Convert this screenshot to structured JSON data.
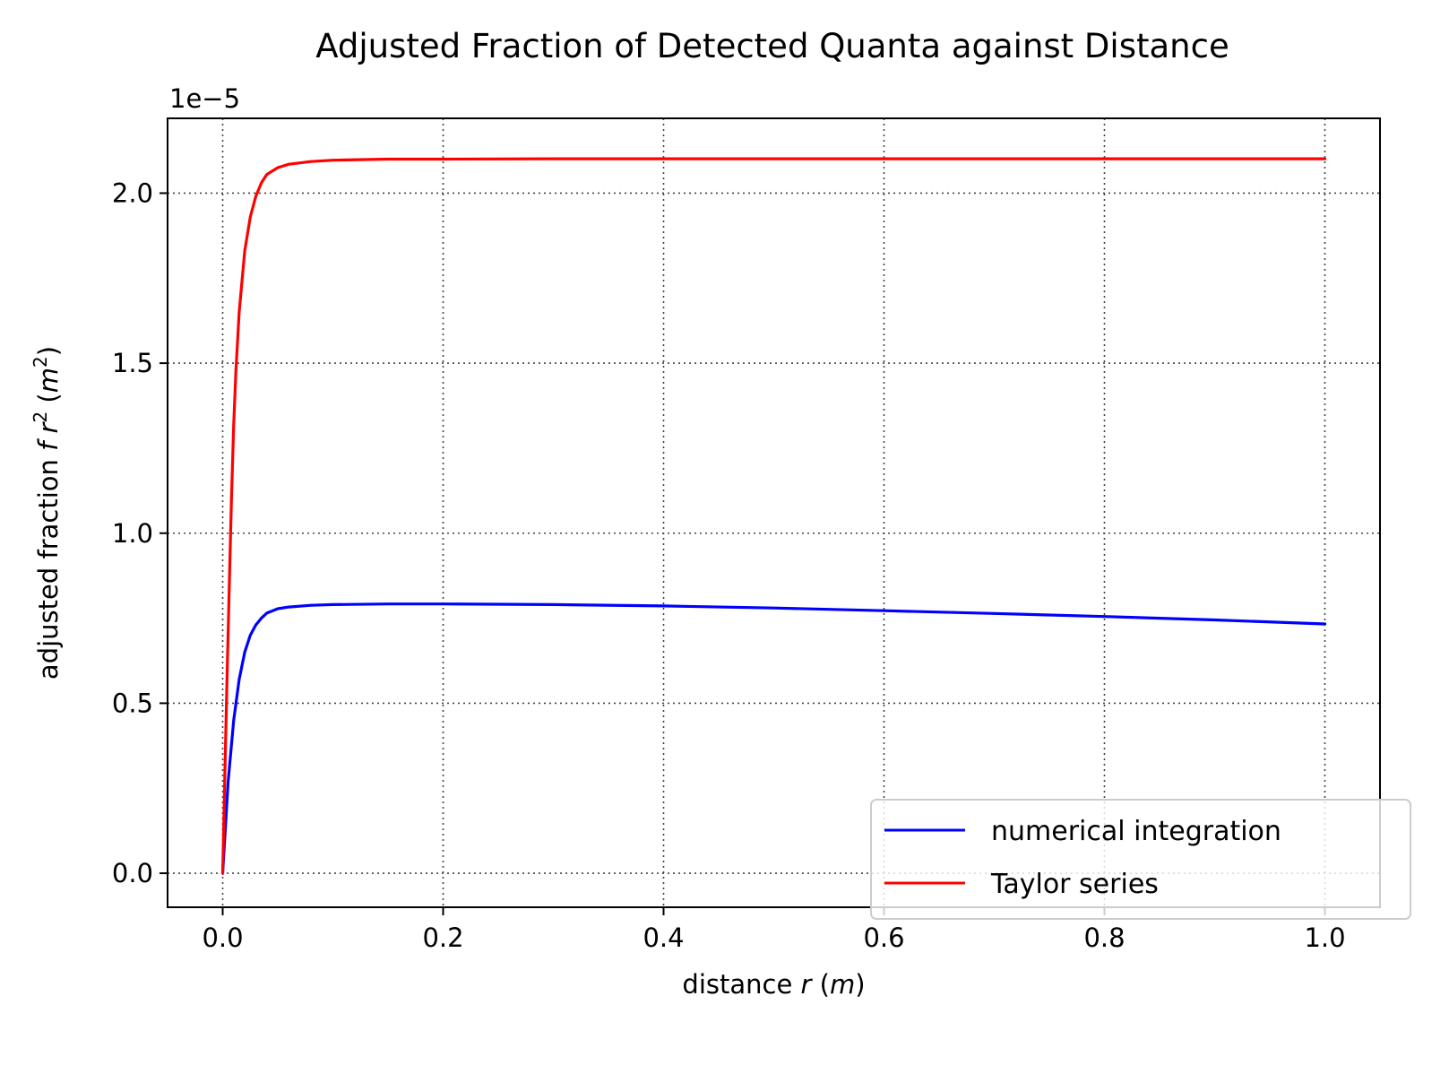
{
  "chart_data": {
    "type": "line",
    "title": "Adjusted Fraction of Detected Quanta against Distance",
    "xlabel": {
      "prefix": "distance ",
      "var": "r",
      "unit_open": " (",
      "unit_var": "m",
      "unit_close": ")"
    },
    "ylabel": {
      "prefix": "adjusted fraction ",
      "var": "f r",
      "sup": "2",
      "unit_open": " (",
      "unit_var": "m",
      "unit_sup": "2",
      "unit_close": ")"
    },
    "offset_text": "1e−5",
    "xlim": [
      -0.05,
      1.05
    ],
    "ylim": [
      -0.1,
      2.22
    ],
    "x_ticks": [
      0.0,
      0.2,
      0.4,
      0.6,
      0.8,
      1.0
    ],
    "x_tick_labels": [
      "0.0",
      "0.2",
      "0.4",
      "0.6",
      "0.8",
      "1.0"
    ],
    "y_ticks": [
      0.0,
      0.5,
      1.0,
      1.5,
      2.0
    ],
    "y_tick_labels": [
      "0.0",
      "0.5",
      "1.0",
      "1.5",
      "2.0"
    ],
    "grid": true,
    "grid_style": "dotted",
    "legend_position": "lower-right",
    "series": [
      {
        "name": "numerical integration",
        "color": "#0000ff",
        "x": [
          0.0,
          0.005,
          0.01,
          0.015,
          0.02,
          0.025,
          0.03,
          0.035,
          0.04,
          0.05,
          0.06,
          0.08,
          0.1,
          0.15,
          0.2,
          0.3,
          0.4,
          0.5,
          0.6,
          0.7,
          0.8,
          0.9,
          1.0
        ],
        "y": [
          0.0,
          0.27,
          0.45,
          0.57,
          0.65,
          0.7,
          0.73,
          0.75,
          0.765,
          0.778,
          0.783,
          0.788,
          0.79,
          0.792,
          0.792,
          0.79,
          0.786,
          0.78,
          0.772,
          0.764,
          0.755,
          0.745,
          0.733
        ]
      },
      {
        "name": "Taylor series",
        "color": "#ff0000",
        "x": [
          0.0,
          0.002,
          0.004,
          0.006,
          0.008,
          0.01,
          0.012,
          0.015,
          0.02,
          0.025,
          0.03,
          0.035,
          0.04,
          0.05,
          0.06,
          0.08,
          0.1,
          0.15,
          0.2,
          0.3,
          0.4,
          0.5,
          0.6,
          0.7,
          0.8,
          0.9,
          1.0
        ],
        "y": [
          0.0,
          0.3,
          0.58,
          0.85,
          1.1,
          1.32,
          1.48,
          1.65,
          1.83,
          1.93,
          1.99,
          2.03,
          2.055,
          2.075,
          2.085,
          2.093,
          2.097,
          2.1,
          2.1,
          2.101,
          2.101,
          2.101,
          2.101,
          2.101,
          2.101,
          2.101,
          2.101
        ]
      }
    ]
  }
}
